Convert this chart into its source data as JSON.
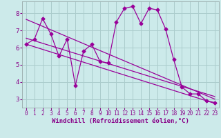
{
  "xlabel": "Windchill (Refroidissement éolien,°C)",
  "bg_color": "#cceaea",
  "line_color": "#990099",
  "grid_color": "#aacccc",
  "xlim": [
    -0.5,
    23.5
  ],
  "ylim": [
    2.5,
    8.7
  ],
  "xticks": [
    0,
    1,
    2,
    3,
    4,
    5,
    6,
    7,
    8,
    9,
    10,
    11,
    12,
    13,
    14,
    15,
    16,
    17,
    18,
    19,
    20,
    21,
    22,
    23
  ],
  "yticks": [
    3,
    4,
    5,
    6,
    7,
    8
  ],
  "data_x": [
    0,
    1,
    2,
    3,
    4,
    5,
    6,
    7,
    8,
    9,
    10,
    11,
    12,
    13,
    14,
    15,
    16,
    17,
    18,
    19,
    20,
    21,
    22,
    23
  ],
  "data_y": [
    6.2,
    6.5,
    7.7,
    6.8,
    5.5,
    6.5,
    3.8,
    5.8,
    6.2,
    5.2,
    5.1,
    7.5,
    8.3,
    8.4,
    7.4,
    8.3,
    8.2,
    7.1,
    5.3,
    3.7,
    3.3,
    3.3,
    2.9,
    2.8
  ],
  "trend1_x": [
    0,
    23
  ],
  "trend1_y": [
    7.65,
    3.0
  ],
  "trend2_x": [
    0,
    23
  ],
  "trend2_y": [
    6.55,
    3.15
  ],
  "trend3_x": [
    0,
    23
  ],
  "trend3_y": [
    6.2,
    2.75
  ],
  "marker": "D",
  "markersize": 2.5,
  "linewidth": 0.9,
  "tick_fontsize": 5.5,
  "xlabel_fontsize": 6.5,
  "label_color": "#880088"
}
